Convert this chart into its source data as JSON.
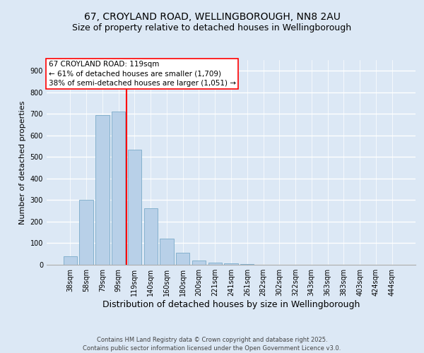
{
  "title1": "67, CROYLAND ROAD, WELLINGBOROUGH, NN8 2AU",
  "title2": "Size of property relative to detached houses in Wellingborough",
  "xlabel": "Distribution of detached houses by size in Wellingborough",
  "ylabel": "Number of detached properties",
  "categories": [
    "38sqm",
    "58sqm",
    "79sqm",
    "99sqm",
    "119sqm",
    "140sqm",
    "160sqm",
    "180sqm",
    "200sqm",
    "221sqm",
    "241sqm",
    "261sqm",
    "282sqm",
    "302sqm",
    "322sqm",
    "343sqm",
    "363sqm",
    "383sqm",
    "403sqm",
    "424sqm",
    "444sqm"
  ],
  "values": [
    40,
    300,
    695,
    710,
    535,
    262,
    120,
    55,
    20,
    10,
    5,
    3,
    1,
    0,
    0,
    0,
    0,
    0,
    0,
    0,
    0
  ],
  "bar_color": "#b8d0e8",
  "bar_edge_color": "#7aaac8",
  "vline_color": "red",
  "vline_index": 4,
  "annotation_text": "67 CROYLAND ROAD: 119sqm\n← 61% of detached houses are smaller (1,709)\n38% of semi-detached houses are larger (1,051) →",
  "ylim": [
    0,
    950
  ],
  "yticks": [
    0,
    100,
    200,
    300,
    400,
    500,
    600,
    700,
    800,
    900
  ],
  "bg_color": "#dce8f5",
  "plot_bg_color": "#dce8f5",
  "grid_color": "white",
  "footer_text": "Contains HM Land Registry data © Crown copyright and database right 2025.\nContains public sector information licensed under the Open Government Licence v3.0.",
  "title1_fontsize": 10,
  "title2_fontsize": 9,
  "xlabel_fontsize": 9,
  "ylabel_fontsize": 8,
  "annotation_fontsize": 7.5,
  "tick_fontsize": 7,
  "footer_fontsize": 6
}
